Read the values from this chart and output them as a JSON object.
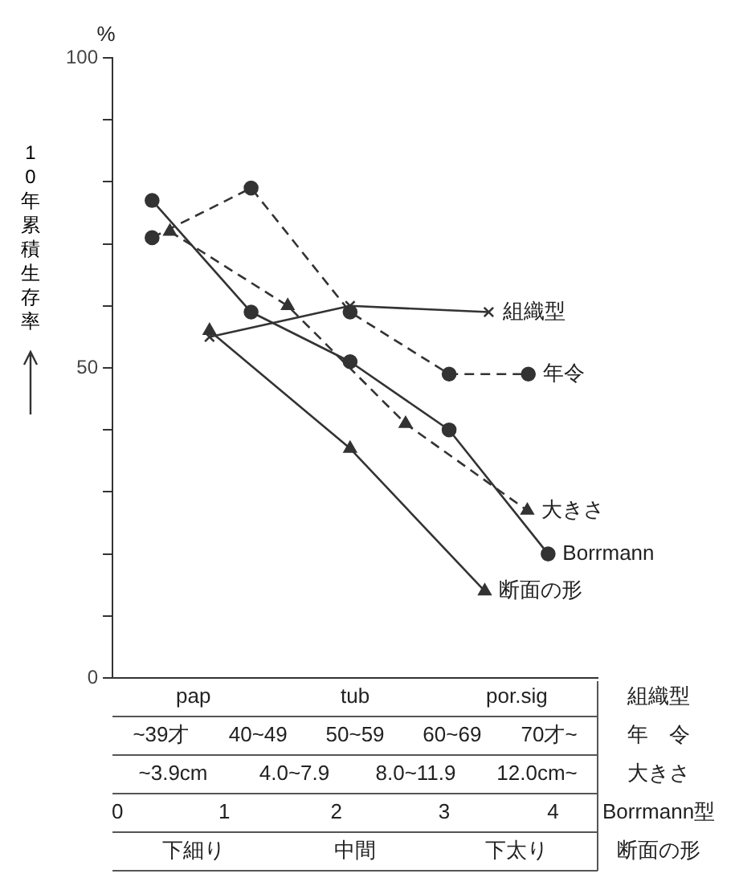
{
  "chart_data": {
    "type": "line",
    "ylabel": "10年累積生存率",
    "annotations": [
      "組織型",
      "pap",
      "tub",
      "por.sig",
      "年　令",
      "~39才",
      "40~49",
      "50~59",
      "60~69",
      "70才~",
      "大きさ",
      "~3.9cm",
      "4.0~7.9",
      "8.0~11.9",
      "12.0cm~",
      "断面の形",
      "下細り",
      "中間",
      "下太り",
      "%"
    ],
    "xlabel": "Borrmann型",
    "xlim": [
      -0.4,
      4.5
    ],
    "xticks": [
      {
        "value": -0.35,
        "label": "0"
      },
      {
        "value": 0.73,
        "label": "1"
      },
      {
        "value": 1.86,
        "label": "2"
      },
      {
        "value": 2.95,
        "label": "3"
      },
      {
        "value": 4.05,
        "label": "4"
      }
    ],
    "ylim": [
      0,
      100
    ],
    "yticks": [
      0,
      {
        "value": 10,
        "label": null
      },
      {
        "value": 20,
        "label": null
      },
      {
        "value": 30,
        "label": null
      },
      {
        "value": 40,
        "label": null
      },
      50,
      {
        "value": 60,
        "label": null
      },
      {
        "value": 70,
        "label": null
      },
      {
        "value": 80,
        "label": null
      },
      {
        "value": 90,
        "label": null
      },
      100
    ],
    "grid": false,
    "legend": false,
    "series": [
      {
        "name": "組織型",
        "color": "#333333",
        "marker": "cross",
        "line_style": "solid",
        "x": [
          0.58,
          2.0,
          3.4
        ],
        "values": [
          55,
          60,
          59
        ]
      },
      {
        "name": "年令",
        "color": "#333333",
        "marker": "circle",
        "line_style": "dashed",
        "x": [
          0,
          1,
          2,
          3,
          3.8
        ],
        "values": [
          71,
          79,
          59,
          49,
          49
        ]
      },
      {
        "name": "大きさ",
        "color": "#333333",
        "marker": "triangle",
        "line_style": "dashed",
        "x": [
          0.18,
          1.37,
          2.56,
          3.79
        ],
        "values": [
          72,
          60,
          41,
          27
        ]
      },
      {
        "name": "Borrmann",
        "color": "#333333",
        "marker": "circle",
        "line_style": "solid",
        "x": [
          0,
          1,
          2,
          3,
          4
        ],
        "values": [
          77,
          59,
          51,
          40,
          20
        ]
      },
      {
        "name": "断面の形",
        "color": "#333333",
        "marker": "triangle",
        "line_style": "solid",
        "x": [
          0.58,
          2.0,
          3.36
        ],
        "values": [
          56,
          37,
          14
        ]
      }
    ]
  }
}
